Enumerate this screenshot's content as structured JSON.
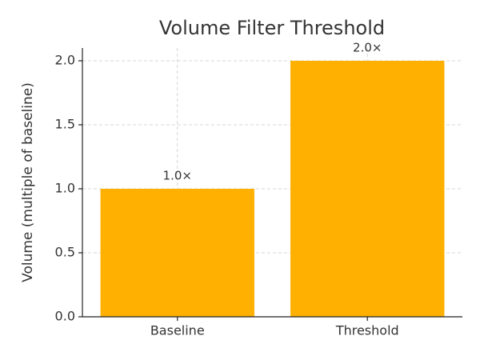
{
  "chart_data": {
    "type": "bar",
    "title": "Volume Filter Threshold",
    "y_label": "Volume (multiple of baseline)",
    "categories": [
      "Baseline",
      "Threshold"
    ],
    "values": [
      1.0,
      2.0
    ],
    "value_labels": [
      "1.0×",
      "2.0×"
    ],
    "color": "#ffb000",
    "ylim": [
      0,
      2.1
    ],
    "yticks": [
      {
        "value": 0,
        "label": "0.0"
      },
      0.5,
      {
        "value": 1,
        "label": "1.0"
      },
      1.5,
      {
        "value": 2,
        "label": "2.0"
      }
    ],
    "grid": true
  }
}
